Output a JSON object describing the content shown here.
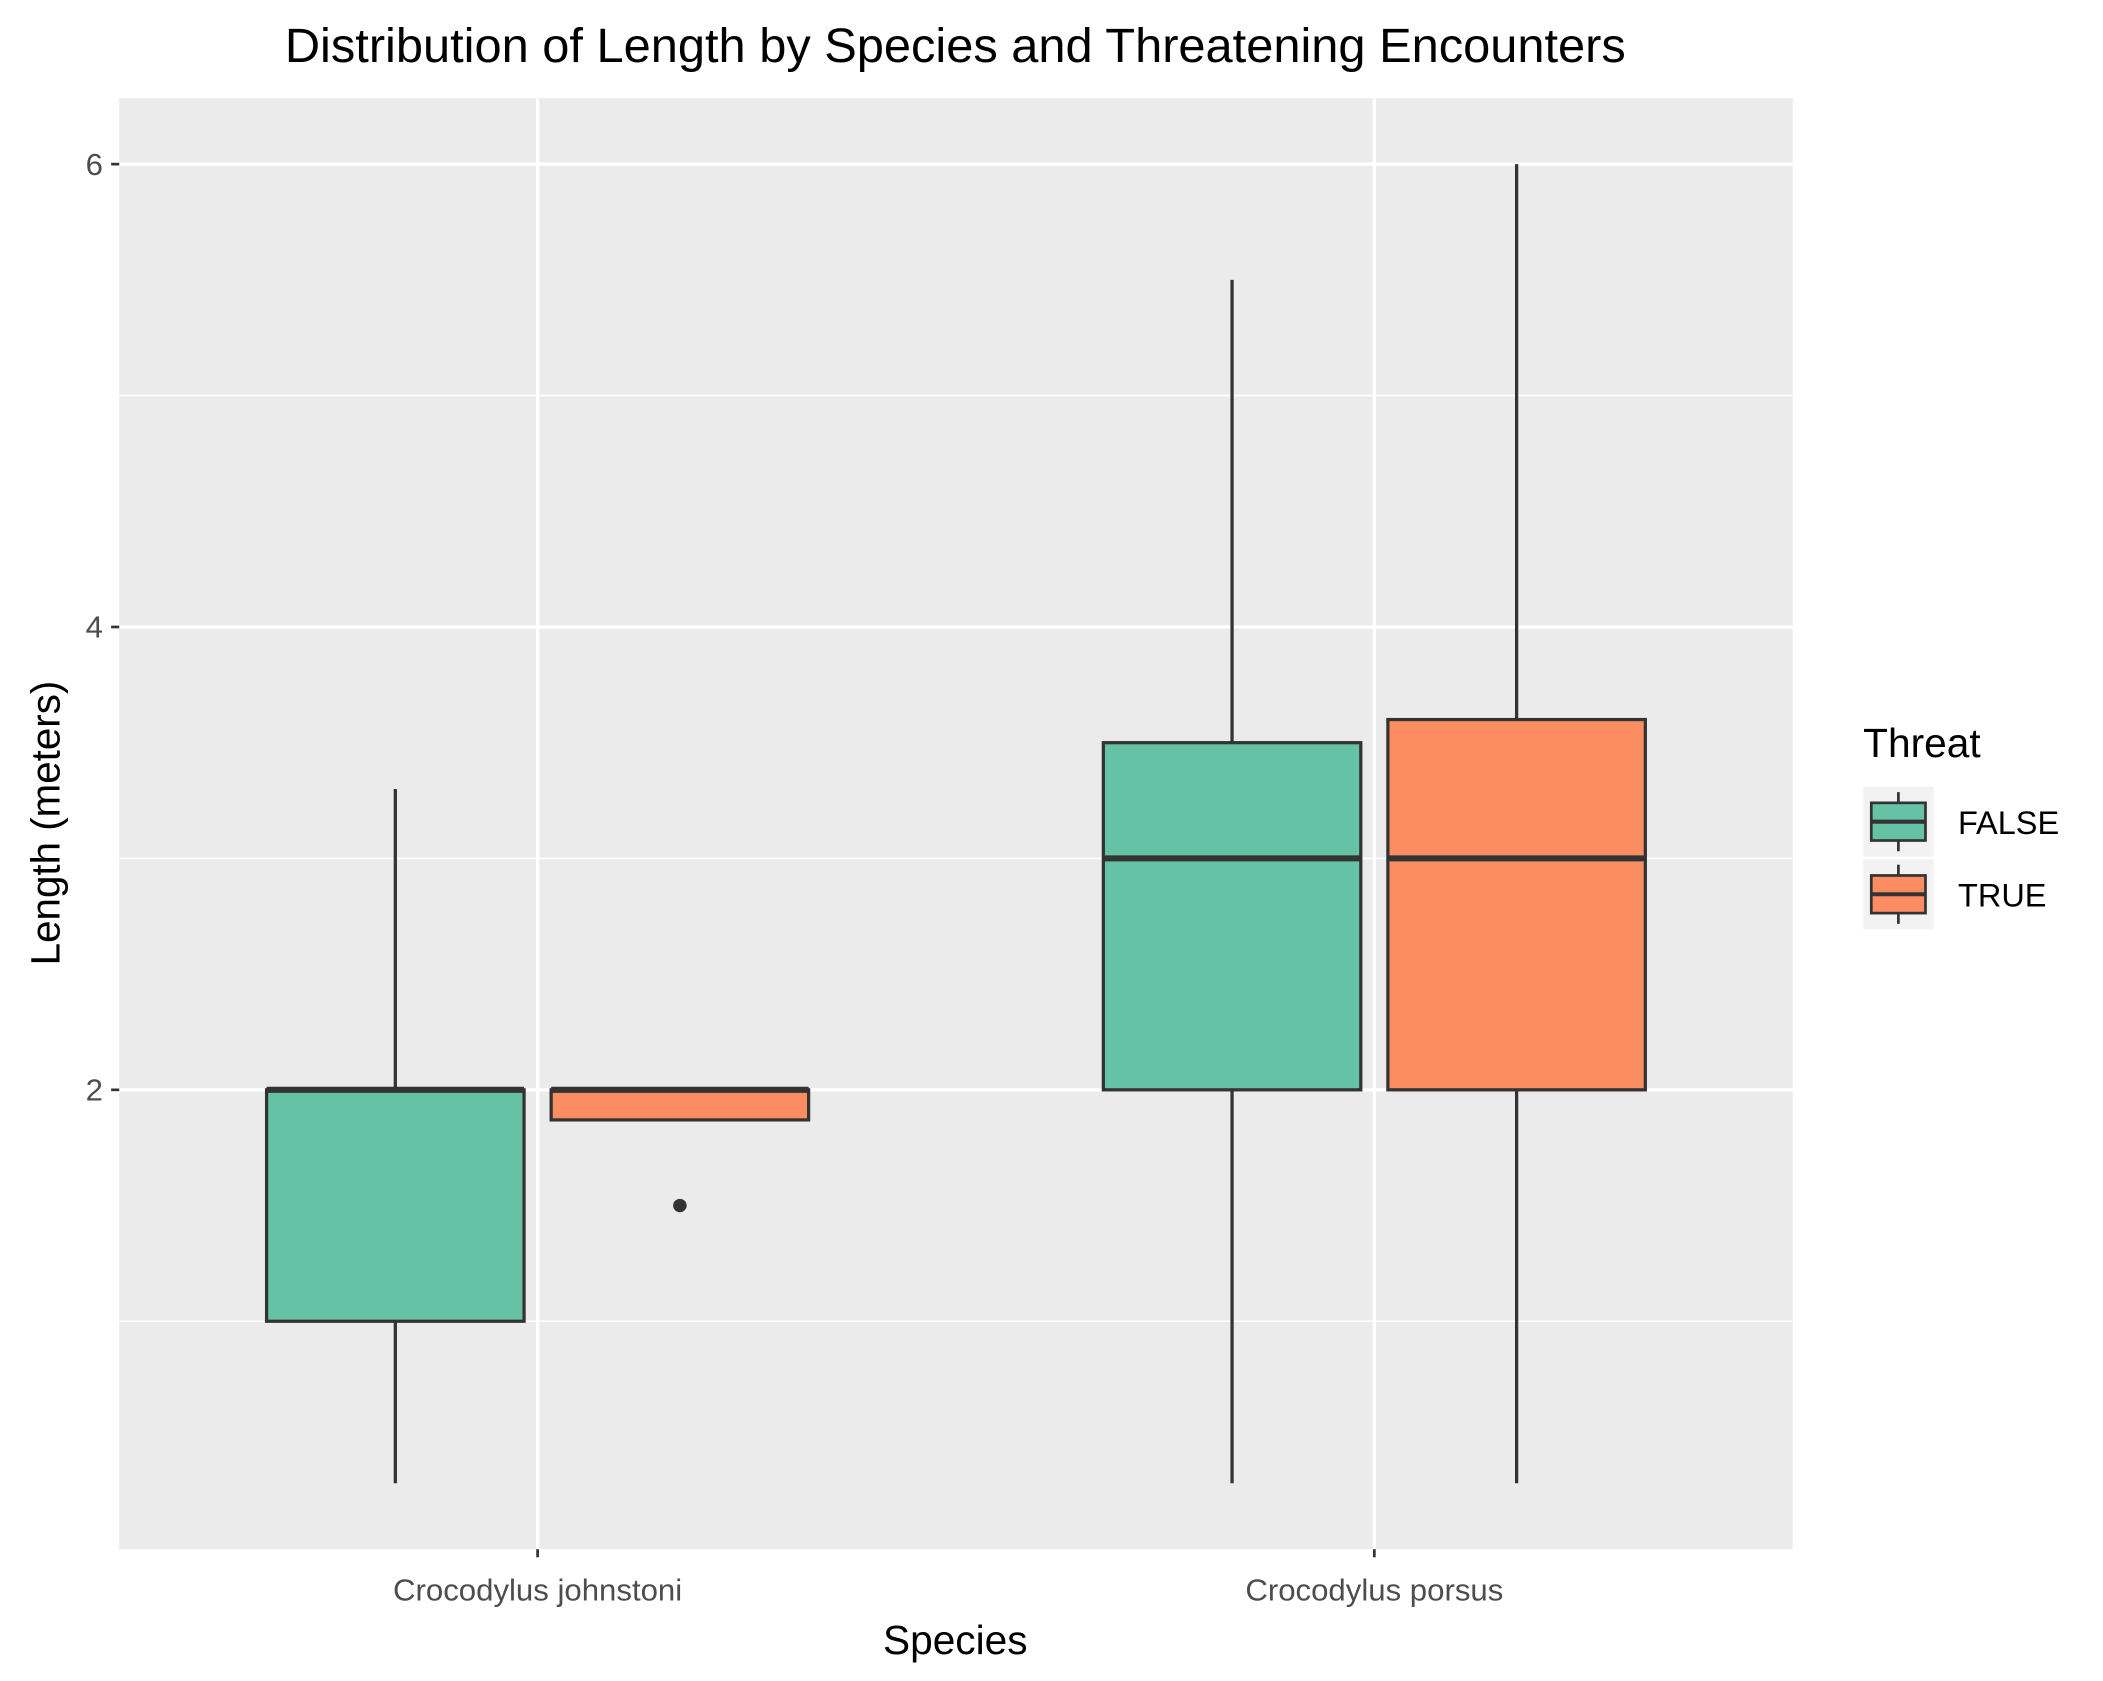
{
  "chart_data": {
    "type": "boxplot",
    "title": "Distribution of Length by Species and Threatening Encounters",
    "x_label": "Species",
    "y_label": "Length (meters)",
    "legend_title": "Threat",
    "legend_position": "right",
    "grid": true,
    "categories": [
      "Crocodylus johnstoni",
      "Crocodylus porsus"
    ],
    "ylim": [
      0.015,
      6.285
    ],
    "yticks": [
      2,
      4,
      6
    ],
    "y_minor_grid": [
      1,
      3,
      5
    ],
    "series": [
      {
        "name": "FALSE",
        "color": "#66c2a5",
        "boxes": [
          {
            "min": 0.3,
            "q1": 1.0,
            "median": 2.0,
            "q3": 2.0,
            "max": 3.3
          },
          {
            "min": 0.3,
            "q1": 2.0,
            "median": 3.0,
            "q3": 3.5,
            "max": 5.5
          }
        ]
      },
      {
        "name": "TRUE",
        "color": "#fc8d62",
        "boxes": [
          {
            "min": 1.87,
            "q1": 1.87,
            "median": 2.0,
            "q3": 2.0,
            "max": 2.0,
            "outliers": [
              1.5
            ]
          },
          {
            "min": 0.3,
            "q1": 2.0,
            "median": 3.0,
            "q3": 3.6,
            "max": 6.0
          }
        ]
      }
    ]
  }
}
